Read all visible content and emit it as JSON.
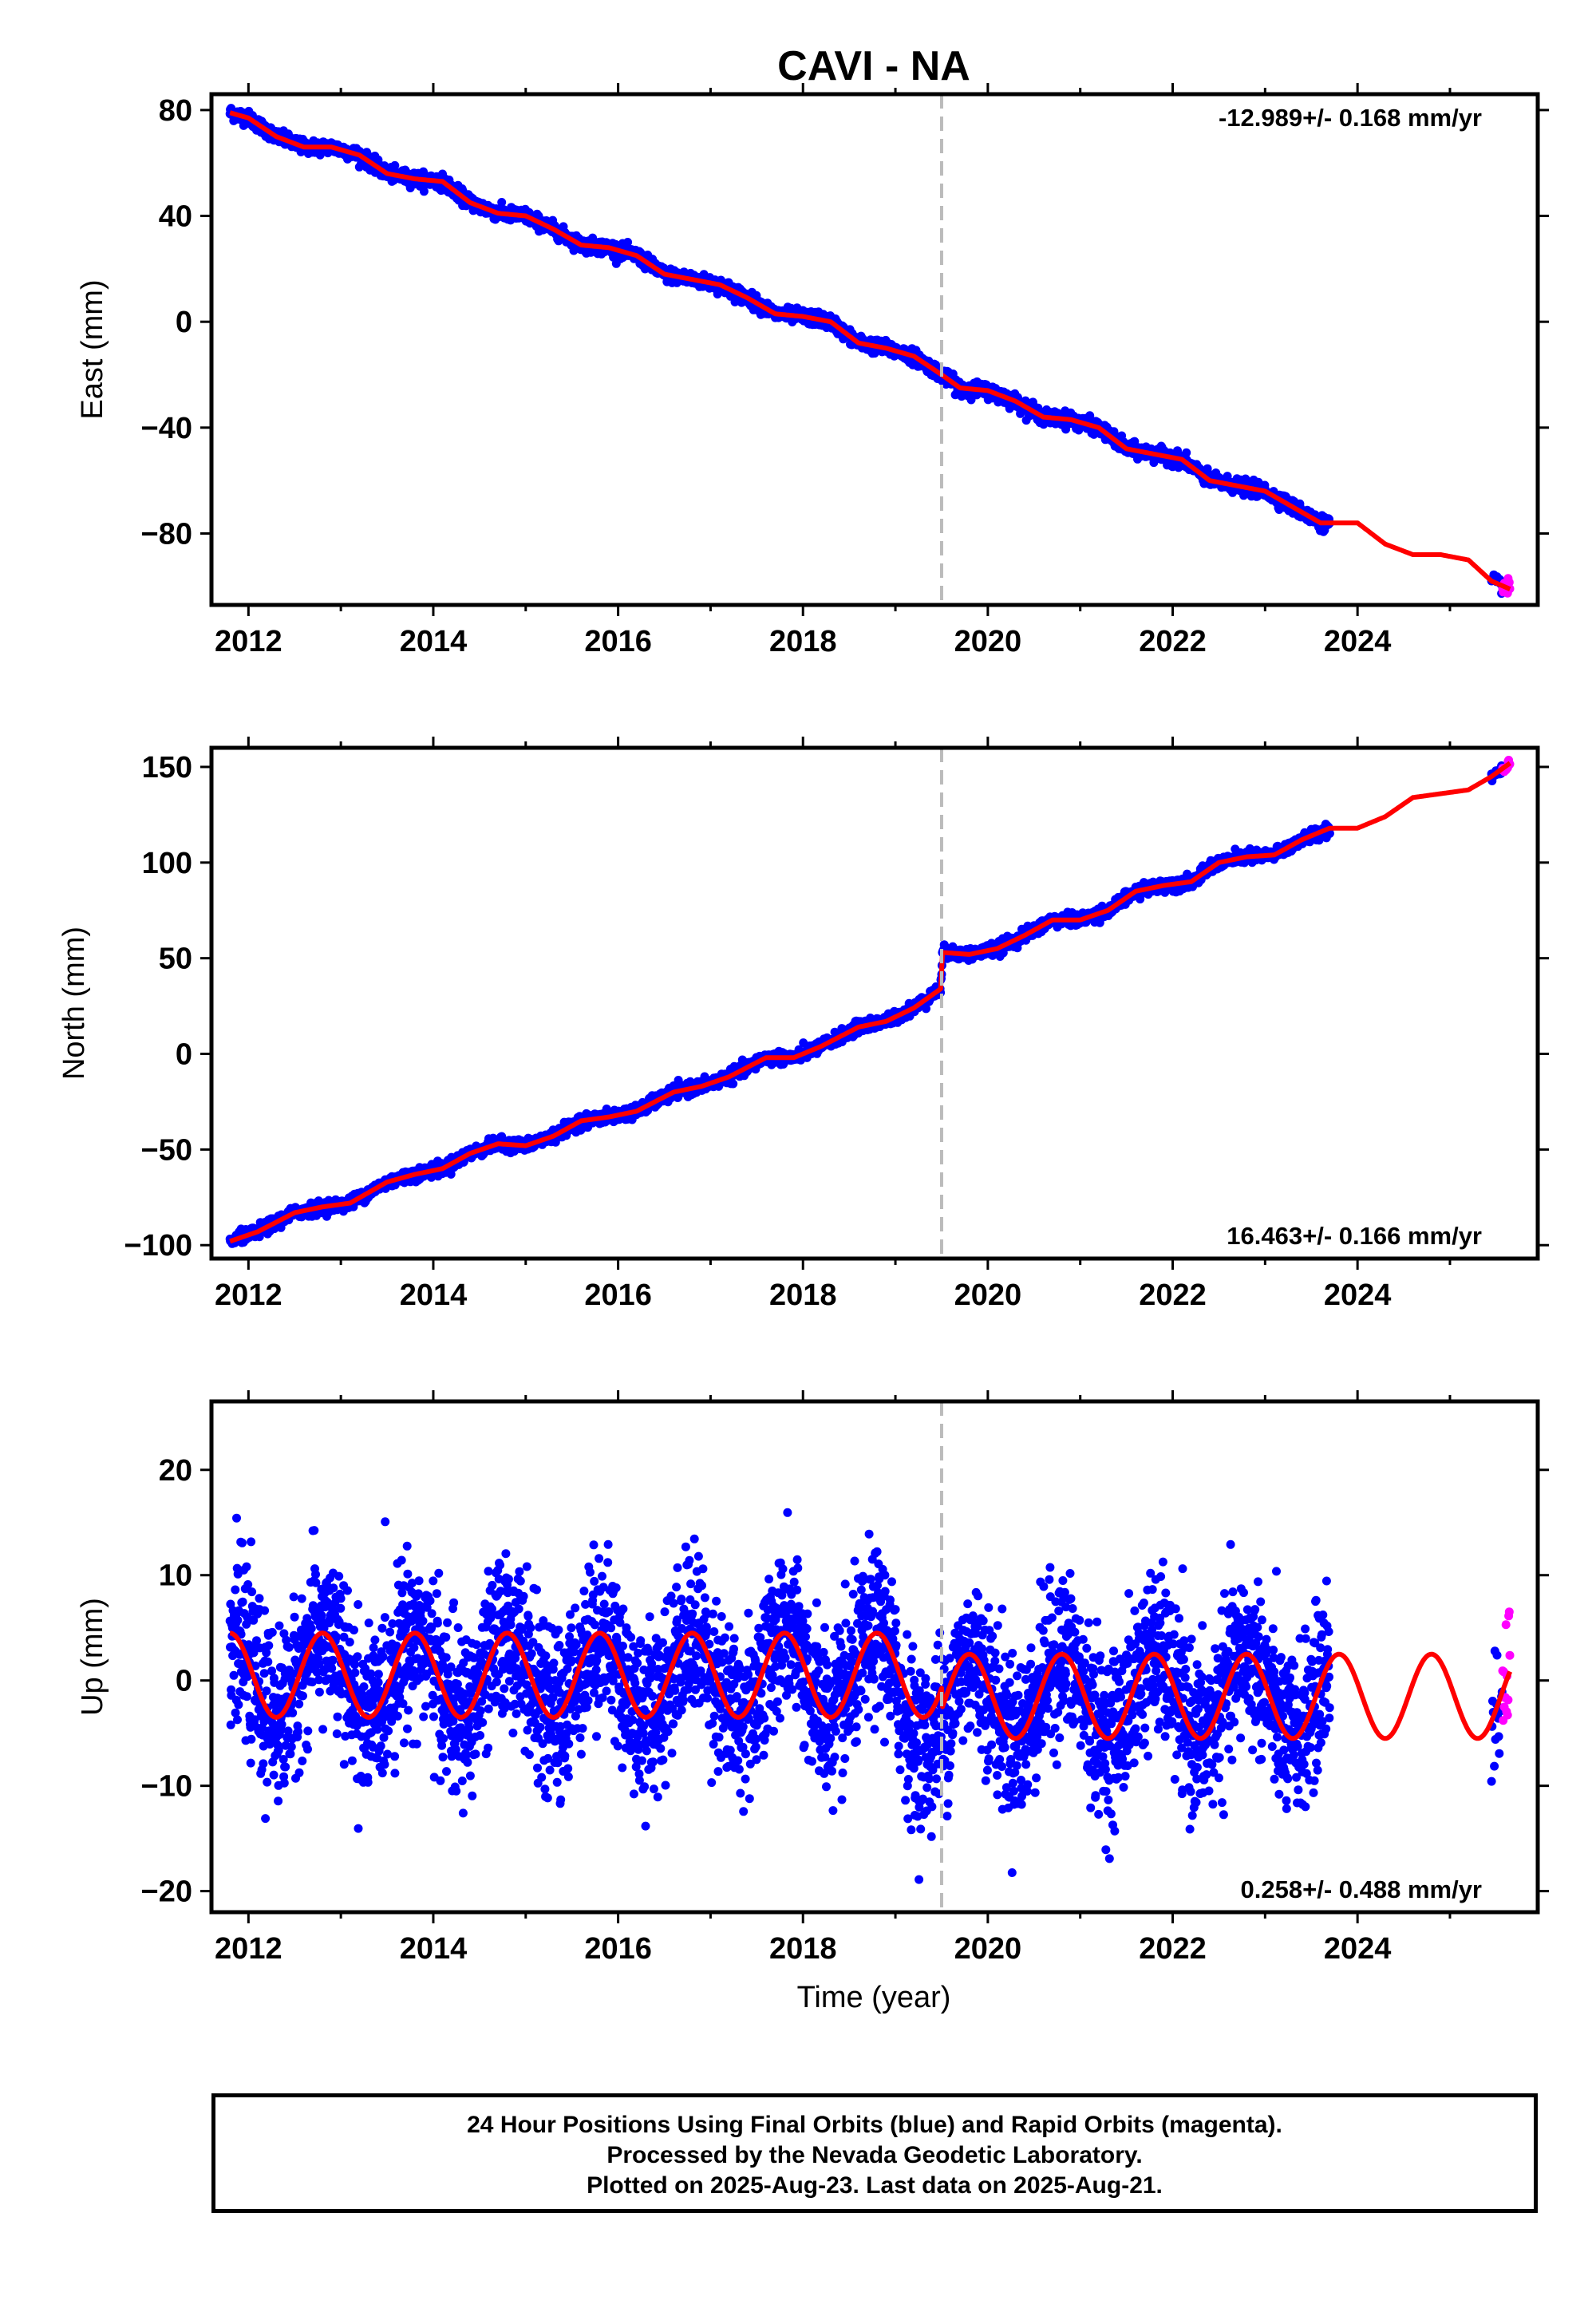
{
  "title": "CAVI - NA",
  "xlabel": "Time (year)",
  "colors": {
    "final_orbits": "#0000ff",
    "rapid_orbits": "#ff00ff",
    "model": "#ff0000",
    "break_line": "#bbbbbb",
    "axes": "#000000"
  },
  "footer": {
    "line1": "24 Hour Positions Using Final Orbits (blue) and Rapid Orbits (magenta).",
    "line2": "Processed by the Nevada Geodetic Laboratory.",
    "line3": "Plotted on 2025-Aug-23. Last data on 2025-Aug-21."
  },
  "chart_data": [
    {
      "type": "scatter",
      "name": "east",
      "ylabel": "East (mm)",
      "rate_label": "-12.989+/- 0.168 mm/yr",
      "rate_position": "top-right",
      "xlim": [
        2011.6,
        2025.95
      ],
      "ylim": [
        -107,
        86
      ],
      "xticks": [
        2012,
        2014,
        2016,
        2018,
        2020,
        2022,
        2024
      ],
      "yticks": [
        80,
        40,
        0,
        -40,
        -80
      ],
      "ytick_labels": [
        "80",
        "40",
        "0",
        "−40",
        "−80"
      ],
      "equipment_change": 2019.5,
      "final_range": [
        2011.8,
        2023.7
      ],
      "rapid_range": [
        2025.45,
        2025.65
      ],
      "model": {
        "x": [
          2011.8,
          2012.0,
          2012.3,
          2012.6,
          2012.9,
          2013.2,
          2013.5,
          2013.8,
          2014.1,
          2014.4,
          2014.7,
          2015.0,
          2015.3,
          2015.6,
          2015.9,
          2016.2,
          2016.5,
          2016.8,
          2017.1,
          2017.4,
          2017.7,
          2018.0,
          2018.3,
          2018.6,
          2018.9,
          2019.2,
          2019.5,
          2019.7,
          2020.0,
          2020.3,
          2020.6,
          2020.9,
          2021.2,
          2021.5,
          2021.8,
          2022.1,
          2022.4,
          2022.7,
          2023.0,
          2023.3,
          2023.6,
          2024.0,
          2024.3,
          2024.6,
          2024.9,
          2025.2,
          2025.45,
          2025.65
        ],
        "y": [
          79,
          77,
          70,
          66,
          66,
          63,
          56,
          54,
          53,
          45,
          41,
          40,
          35,
          29,
          28,
          25,
          18,
          16,
          14,
          9,
          3,
          2,
          0,
          -8,
          -10,
          -13,
          -20,
          -25,
          -26,
          -30,
          -36,
          -37,
          -40,
          -48,
          -50,
          -52,
          -60,
          -62,
          -64,
          -70,
          -76,
          -76,
          -84,
          -88,
          -88,
          -90,
          -98,
          -101
        ]
      },
      "scatter_sd": 1.3
    },
    {
      "type": "scatter",
      "name": "north",
      "ylabel": "North (mm)",
      "rate_label": "16.463+/- 0.166 mm/yr",
      "rate_position": "bottom-right",
      "xlim": [
        2011.6,
        2025.95
      ],
      "ylim": [
        -107,
        160
      ],
      "xticks": [
        2012,
        2014,
        2016,
        2018,
        2020,
        2022,
        2024
      ],
      "yticks": [
        150,
        100,
        50,
        0,
        -50,
        -100
      ],
      "ytick_labels": [
        "150",
        "100",
        "50",
        "0",
        "−50",
        "−100"
      ],
      "equipment_change": 2019.5,
      "final_range": [
        2011.8,
        2023.7
      ],
      "rapid_range": [
        2025.45,
        2025.65
      ],
      "model": {
        "x": [
          2011.8,
          2012.1,
          2012.5,
          2012.8,
          2013.1,
          2013.5,
          2013.8,
          2014.1,
          2014.4,
          2014.7,
          2015.0,
          2015.3,
          2015.6,
          2015.9,
          2016.2,
          2016.6,
          2016.9,
          2017.2,
          2017.6,
          2017.9,
          2018.2,
          2018.6,
          2018.9,
          2019.2,
          2019.49,
          2019.51,
          2019.8,
          2020.1,
          2020.4,
          2020.7,
          2021.0,
          2021.3,
          2021.6,
          2021.9,
          2022.2,
          2022.5,
          2022.8,
          2023.1,
          2023.4,
          2023.7,
          2024.0,
          2024.3,
          2024.6,
          2024.9,
          2025.2,
          2025.45,
          2025.65
        ],
        "y": [
          -98,
          -93,
          -83,
          -80,
          -78,
          -67,
          -63,
          -60,
          -52,
          -47,
          -48,
          -43,
          -35,
          -33,
          -30,
          -20,
          -17,
          -12,
          -2,
          -2,
          4,
          14,
          17,
          24,
          34,
          53,
          52,
          55,
          62,
          70,
          70,
          75,
          85,
          88,
          90,
          100,
          103,
          104,
          112,
          118,
          118,
          124,
          134,
          136,
          138,
          145,
          152
        ]
      },
      "scatter_sd": 1.6
    },
    {
      "type": "scatter",
      "name": "up",
      "ylabel": "Up (mm)",
      "rate_label": "0.258+/- 0.488 mm/yr",
      "rate_position": "bottom-right",
      "xlim": [
        2011.6,
        2025.95
      ],
      "ylim": [
        -22,
        26.5
      ],
      "xticks": [
        2012,
        2014,
        2016,
        2018,
        2020,
        2022,
        2024
      ],
      "yticks": [
        20,
        10,
        0,
        -10,
        -20
      ],
      "ytick_labels": [
        "20",
        "10",
        "0",
        "−10",
        "−20"
      ],
      "equipment_change": 2019.5,
      "final_range": [
        2011.8,
        2023.7
      ],
      "rapid_range": [
        2025.45,
        2025.65
      ],
      "model": {
        "seasonal_amplitude_mm": 4,
        "seasonal_period_yr": 1,
        "pre_break_offset_mm": 0.5,
        "post_break_offset_mm": -1.5
      },
      "scatter_sd": 3.8
    }
  ]
}
